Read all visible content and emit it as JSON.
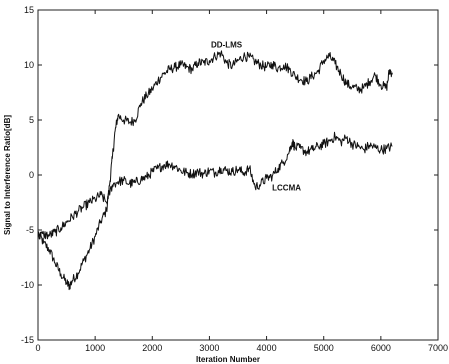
{
  "chart_data": {
    "type": "line",
    "title": "",
    "xlabel": "Iteration Number",
    "ylabel": "Signal to Interference Ratio[dB]",
    "xlim": [
      0,
      7000
    ],
    "ylim": [
      -15,
      15
    ],
    "xticks": [
      0,
      1000,
      2000,
      3000,
      4000,
      5000,
      6000,
      7000
    ],
    "yticks": [
      -15,
      -10,
      -5,
      0,
      5,
      10,
      15
    ],
    "grid": false,
    "legend": "none",
    "colors": {
      "line": "#111111",
      "axis": "#222222",
      "background": "#ffffff"
    },
    "series": [
      {
        "name": "DD-LMS",
        "label_at": [
          3300,
          11.6
        ],
        "points": [
          [
            0,
            -5.2
          ],
          [
            100,
            -6.2
          ],
          [
            200,
            -6.8
          ],
          [
            300,
            -8.0
          ],
          [
            400,
            -9.0
          ],
          [
            500,
            -9.8
          ],
          [
            550,
            -10.1
          ],
          [
            600,
            -9.6
          ],
          [
            700,
            -8.9
          ],
          [
            800,
            -7.8
          ],
          [
            900,
            -6.8
          ],
          [
            1000,
            -5.6
          ],
          [
            1100,
            -4.2
          ],
          [
            1200,
            -3.2
          ],
          [
            1250,
            -1.0
          ],
          [
            1300,
            1.5
          ],
          [
            1350,
            4.0
          ],
          [
            1400,
            5.4
          ],
          [
            1500,
            5.0
          ],
          [
            1600,
            4.8
          ],
          [
            1700,
            5.0
          ],
          [
            1800,
            6.5
          ],
          [
            1900,
            7.2
          ],
          [
            2000,
            7.8
          ],
          [
            2100,
            8.6
          ],
          [
            2200,
            9.2
          ],
          [
            2300,
            9.6
          ],
          [
            2400,
            9.8
          ],
          [
            2500,
            10.0
          ],
          [
            2600,
            9.8
          ],
          [
            2700,
            9.6
          ],
          [
            2800,
            10.2
          ],
          [
            2900,
            10.2
          ],
          [
            3000,
            10.4
          ],
          [
            3100,
            10.8
          ],
          [
            3200,
            11.1
          ],
          [
            3300,
            10.2
          ],
          [
            3400,
            9.9
          ],
          [
            3500,
            10.4
          ],
          [
            3600,
            10.8
          ],
          [
            3700,
            10.7
          ],
          [
            3800,
            10.3
          ],
          [
            3900,
            10.0
          ],
          [
            4000,
            9.8
          ],
          [
            4100,
            10.1
          ],
          [
            4200,
            9.7
          ],
          [
            4300,
            10.0
          ],
          [
            4400,
            9.6
          ],
          [
            4500,
            9.0
          ],
          [
            4600,
            8.7
          ],
          [
            4700,
            8.5
          ],
          [
            4800,
            9.0
          ],
          [
            4900,
            9.4
          ],
          [
            5000,
            10.4
          ],
          [
            5100,
            10.8
          ],
          [
            5200,
            10.1
          ],
          [
            5300,
            9.2
          ],
          [
            5400,
            8.3
          ],
          [
            5500,
            8.0
          ],
          [
            5600,
            7.8
          ],
          [
            5700,
            7.9
          ],
          [
            5800,
            8.5
          ],
          [
            5900,
            9.1
          ],
          [
            6000,
            8.2
          ],
          [
            6100,
            7.9
          ],
          [
            6150,
            9.5
          ],
          [
            6200,
            9.3
          ]
        ]
      },
      {
        "name": "LCCMA",
        "label_at": [
          4350,
          -1.4
        ],
        "points": [
          [
            0,
            -5.6
          ],
          [
            100,
            -5.4
          ],
          [
            200,
            -5.5
          ],
          [
            300,
            -5.2
          ],
          [
            400,
            -4.8
          ],
          [
            500,
            -4.3
          ],
          [
            600,
            -3.8
          ],
          [
            700,
            -3.3
          ],
          [
            800,
            -2.9
          ],
          [
            900,
            -2.5
          ],
          [
            1000,
            -2.2
          ],
          [
            1100,
            -1.8
          ],
          [
            1200,
            -2.5
          ],
          [
            1300,
            -0.9
          ],
          [
            1400,
            -0.6
          ],
          [
            1500,
            -0.5
          ],
          [
            1600,
            -0.8
          ],
          [
            1700,
            -0.7
          ],
          [
            1800,
            -0.4
          ],
          [
            1900,
            -0.2
          ],
          [
            2000,
            0.3
          ],
          [
            2100,
            0.6
          ],
          [
            2200,
            0.9
          ],
          [
            2300,
            1.0
          ],
          [
            2400,
            0.8
          ],
          [
            2500,
            0.4
          ],
          [
            2600,
            0.2
          ],
          [
            2700,
            0.1
          ],
          [
            2800,
            0.3
          ],
          [
            2900,
            0.1
          ],
          [
            3000,
            0.4
          ],
          [
            3100,
            0.2
          ],
          [
            3200,
            0.6
          ],
          [
            3300,
            0.4
          ],
          [
            3400,
            0.3
          ],
          [
            3500,
            0.5
          ],
          [
            3600,
            0.2
          ],
          [
            3700,
            0.6
          ],
          [
            3800,
            -1.1
          ],
          [
            3900,
            -0.8
          ],
          [
            4000,
            -0.3
          ],
          [
            4100,
            -0.1
          ],
          [
            4200,
            0.6
          ],
          [
            4300,
            1.2
          ],
          [
            4400,
            2.2
          ],
          [
            4450,
            3.0
          ],
          [
            4500,
            2.5
          ],
          [
            4600,
            2.4
          ],
          [
            4700,
            2.1
          ],
          [
            4800,
            2.3
          ],
          [
            4900,
            2.6
          ],
          [
            5000,
            2.8
          ],
          [
            5100,
            3.1
          ],
          [
            5200,
            3.5
          ],
          [
            5300,
            3.0
          ],
          [
            5400,
            3.4
          ],
          [
            5500,
            2.8
          ],
          [
            5600,
            2.6
          ],
          [
            5700,
            2.3
          ],
          [
            5800,
            2.7
          ],
          [
            5900,
            2.5
          ],
          [
            6000,
            2.3
          ],
          [
            6100,
            2.4
          ],
          [
            6200,
            2.6
          ]
        ]
      }
    ]
  }
}
